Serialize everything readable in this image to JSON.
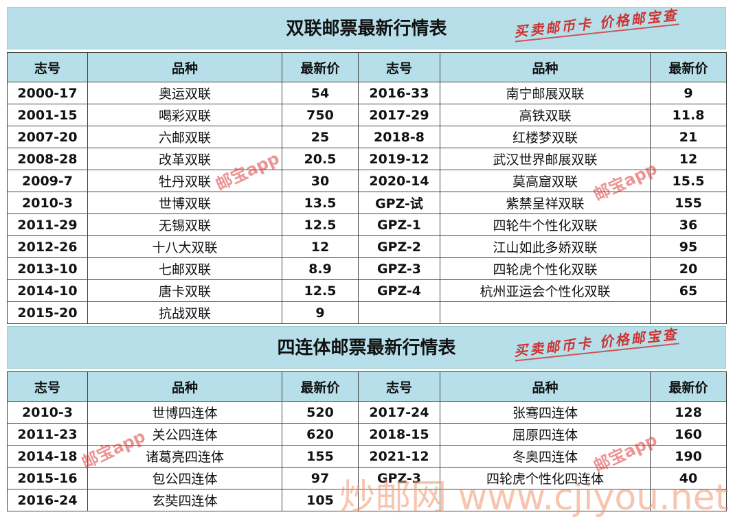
{
  "tables": [
    {
      "title": "双联邮票最新行情表",
      "slogan": "买卖邮币卡 价格邮宝查",
      "watermark": "邮宝app",
      "headers": [
        "志号",
        "品种",
        "最新价",
        "志号",
        "品种",
        "最新价"
      ],
      "rows": [
        [
          "2000-17",
          "奥运双联",
          54,
          "2016-33",
          "南宁邮展双联",
          9
        ],
        [
          "2001-15",
          "喝彩双联",
          750,
          "2017-29",
          "高铁双联",
          11.8
        ],
        [
          "2007-20",
          "六邮双联",
          25,
          "2018-8",
          "红楼梦双联",
          21
        ],
        [
          "2008-28",
          "改革双联",
          20.5,
          "2019-12",
          "武汉世界邮展双联",
          12
        ],
        [
          "2009-7",
          "牡丹双联",
          30,
          "2020-14",
          "莫高窟双联",
          15.5
        ],
        [
          "2010-3",
          "世博双联",
          13.5,
          "GPZ-试",
          "紫禁呈祥双联",
          155
        ],
        [
          "2011-29",
          "无锡双联",
          12.5,
          "GPZ-1",
          "四轮牛个性化双联",
          36
        ],
        [
          "2012-26",
          "十八大双联",
          12,
          "GPZ-2",
          "江山如此多娇双联",
          95
        ],
        [
          "2013-10",
          "七邮双联",
          8.9,
          "GPZ-3",
          "四轮虎个性化双联",
          20
        ],
        [
          "2014-10",
          "唐卡双联",
          12.5,
          "GPZ-4",
          "杭州亚运会个性化双联",
          65
        ],
        [
          "2015-20",
          "抗战双联",
          9
        ]
      ]
    },
    {
      "title": "四连体邮票最新行情表",
      "slogan": "买卖邮币卡 价格邮宝查",
      "watermark": "邮宝app",
      "headers": [
        "志号",
        "品种",
        "最新价",
        "志号",
        "品种",
        "最新价"
      ],
      "rows": [
        [
          "2010-3",
          "世博四连体",
          520,
          "2017-24",
          "张骞四连体",
          128
        ],
        [
          "2011-23",
          "关公四连体",
          620,
          "2018-15",
          "屈原四连体",
          160
        ],
        [
          "2014-18",
          "诸葛亮四连体",
          155,
          "2021-12",
          "冬奥四连体",
          190
        ],
        [
          "2015-16",
          "包公四连体",
          97,
          "GPZ-3",
          "四轮虎个性化四连体",
          40
        ],
        [
          "2016-24",
          "玄奘四连体",
          105
        ]
      ]
    }
  ],
  "site_watermark": "炒邮网 www.cjiyou.net"
}
